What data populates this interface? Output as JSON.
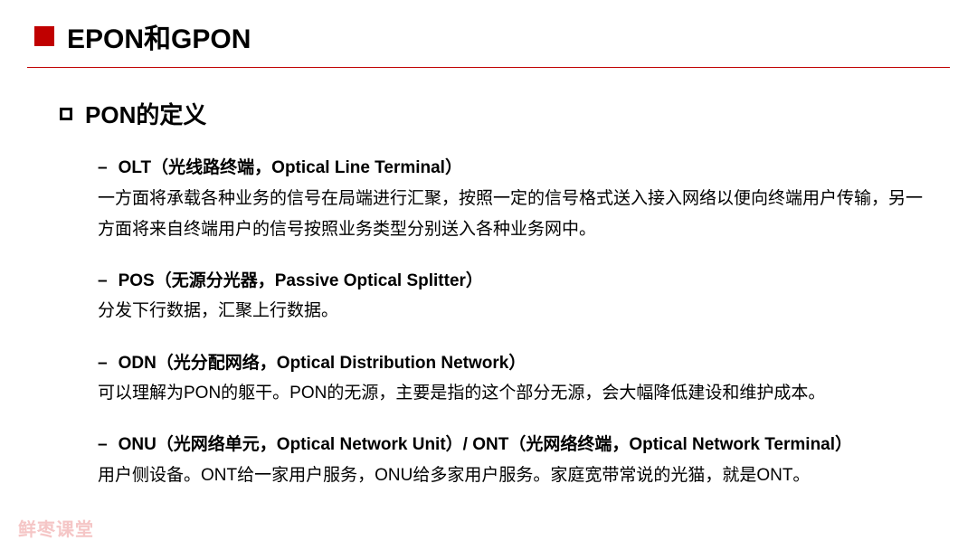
{
  "colors": {
    "accent": "#c00000",
    "text": "#000000",
    "watermark": "#f5c6c6",
    "background": "#ffffff"
  },
  "header": {
    "title": "EPON和GPON"
  },
  "subheader": {
    "title": "PON的定义"
  },
  "terms": [
    {
      "title": "OLT（光线路终端，Optical Line Terminal）",
      "desc": "一方面将承载各种业务的信号在局端进行汇聚，按照一定的信号格式送入接入网络以便向终端用户传输，另一方面将来自终端用户的信号按照业务类型分别送入各种业务网中。"
    },
    {
      "title": "POS（无源分光器，Passive Optical Splitter）",
      "desc": "分发下行数据，汇聚上行数据。"
    },
    {
      "title": "ODN（光分配网络，Optical Distribution Network）",
      "desc": "可以理解为PON的躯干。PON的无源，主要是指的这个部分无源，会大幅降低建设和维护成本。"
    },
    {
      "title": "ONU（光网络单元，Optical Network Unit）/ ONT（光网络终端，Optical Network Terminal）",
      "desc": "用户侧设备。ONT给一家用户服务，ONU给多家用户服务。家庭宽带常说的光猫，就是ONT。"
    }
  ],
  "watermark": "鲜枣课堂"
}
